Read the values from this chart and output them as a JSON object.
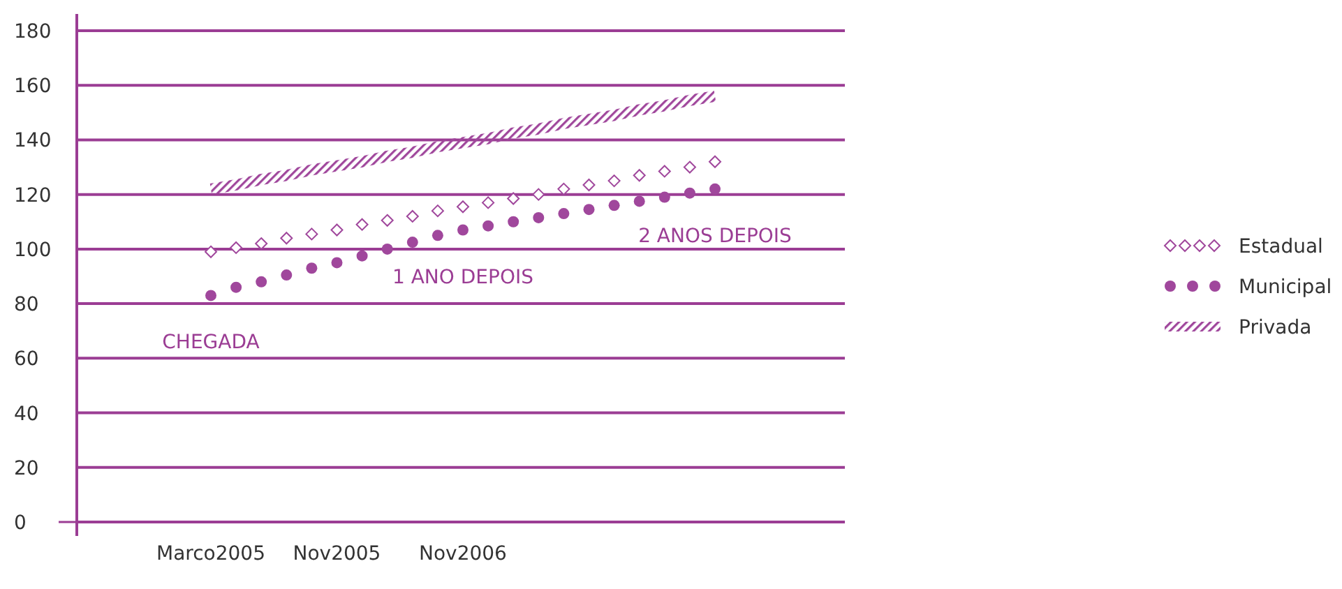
{
  "chart_data": {
    "type": "line",
    "categories": [
      "Marco2005",
      null,
      null,
      null,
      null,
      "Nov2005",
      null,
      null,
      null,
      null,
      "Nov2006",
      null,
      null,
      null,
      null,
      null,
      null,
      null,
      null,
      null,
      null
    ],
    "ylim": [
      0,
      180
    ],
    "yticks": [
      0,
      20,
      40,
      60,
      80,
      100,
      120,
      140,
      160,
      180
    ],
    "grid": "y",
    "legend": "right",
    "series": [
      {
        "name": "Estadual",
        "type": "scatter",
        "color": "#a0479c",
        "marker": "diamond",
        "values": [
          99,
          100.5,
          102,
          104,
          105.5,
          107,
          109,
          110.5,
          112,
          114,
          115.5,
          117,
          118.5,
          120,
          122,
          123.5,
          125,
          127,
          128.5,
          130,
          132
        ]
      },
      {
        "name": "Municipal",
        "type": "scatter",
        "color": "#a0479c",
        "marker": "circle",
        "values": [
          83,
          86,
          88,
          90.5,
          93,
          95,
          97.5,
          100,
          102.5,
          105,
          107,
          108.5,
          110,
          111.5,
          113,
          114.5,
          116,
          117.5,
          119,
          120.5,
          122
        ]
      },
      {
        "name": "Privada",
        "color": "#a0479c",
        "marker": "none",
        "values": [
          122,
          123.5,
          125.5,
          127,
          129,
          130.5,
          132,
          134,
          135.5,
          137.5,
          139,
          140.5,
          142.5,
          144,
          146,
          147.5,
          149,
          151,
          152.5,
          154.5,
          156
        ]
      }
    ],
    "annotations": [
      "CHEGADA",
      "1 ANO DEPOIS",
      "2 ANOS DEPOIS"
    ]
  }
}
